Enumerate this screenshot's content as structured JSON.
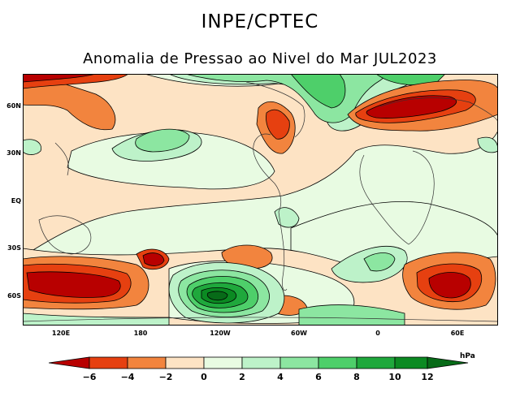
{
  "header": {
    "agency": "INPE/CPTEC",
    "title": "Anomalia de Pressao ao Nivel do Mar JUL2023"
  },
  "map": {
    "lat_labels": [
      "60N",
      "30N",
      "EQ",
      "30S",
      "60S"
    ],
    "lon_labels": [
      "120E",
      "180",
      "120W",
      "60W",
      "0",
      "60E"
    ],
    "colors": {
      "neg6": "#b80000",
      "neg4": "#e64010",
      "neg2": "#f2843e",
      "neg0": "#fde3c4",
      "pos0": "#e8fbe2",
      "pos2": "#bdf2c9",
      "pos4": "#8ce6a1",
      "pos6": "#4ecf6a",
      "pos8": "#1fa83c",
      "pos10": "#0b8a22",
      "pos12": "#076b18"
    }
  },
  "colorbar": {
    "labels": [
      "−6",
      "−4",
      "−2",
      "0",
      "2",
      "4",
      "6",
      "8",
      "10",
      "12"
    ],
    "unit": "hPa"
  }
}
